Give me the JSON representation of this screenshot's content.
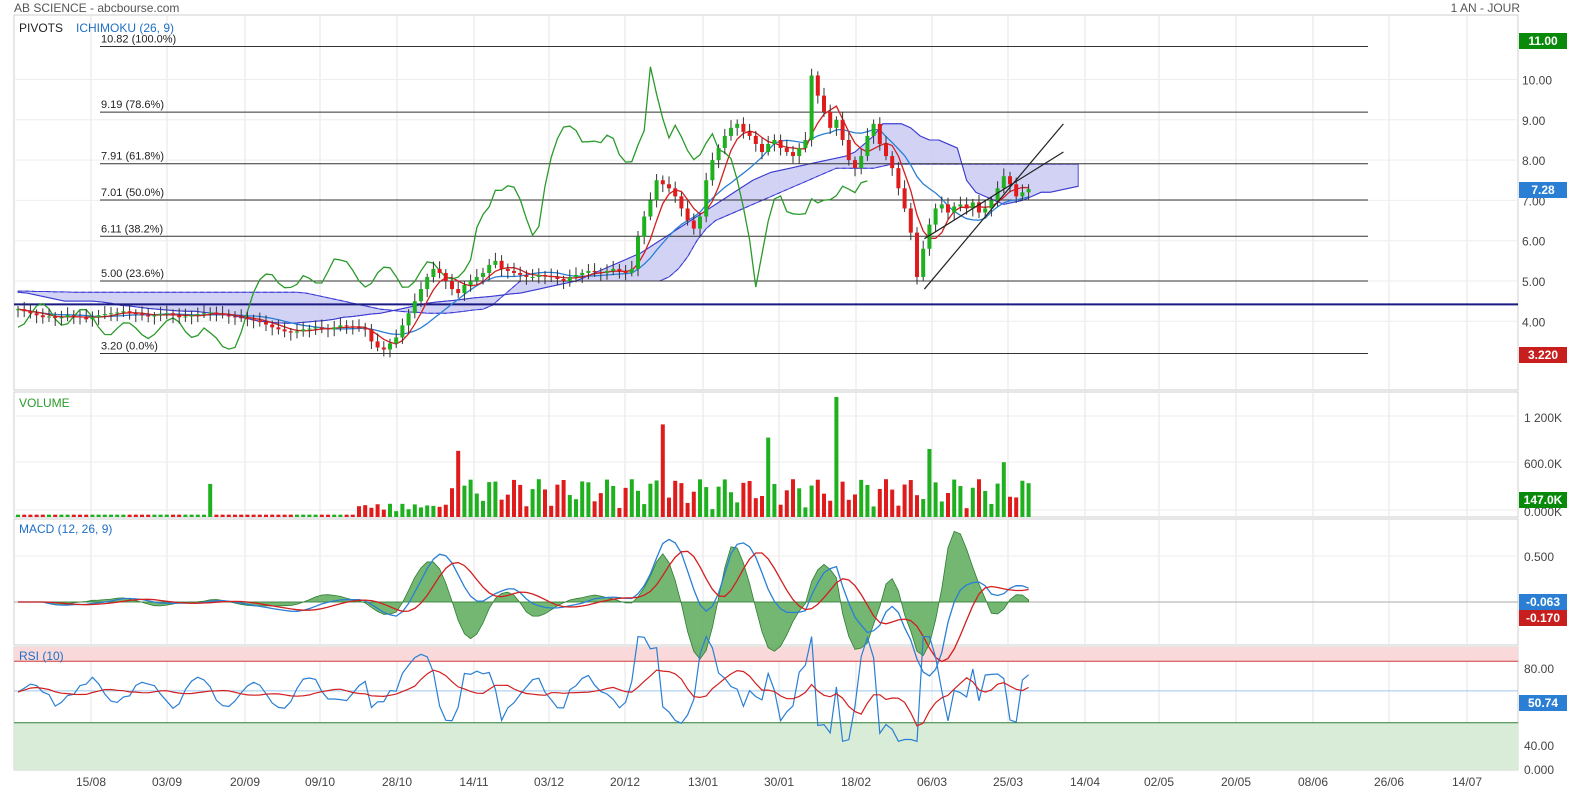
{
  "header": {
    "title": "AB SCIENCE - abcbourse.com",
    "period": "1 AN - JOUR"
  },
  "chart_data": {
    "type": "candlestick-multi-panel",
    "x_ticks": [
      "15/08",
      "03/09",
      "20/09",
      "09/10",
      "28/10",
      "14/11",
      "03/12",
      "20/12",
      "13/01",
      "30/01",
      "18/02",
      "06/03",
      "25/03",
      "14/04",
      "02/05",
      "20/05",
      "08/06",
      "26/06",
      "14/07"
    ],
    "price_panel": {
      "labels": {
        "pivots": "PIVOTS",
        "ichimoku": "ICHIMOKU (26, 9)"
      },
      "y_ticks": [
        "10.00",
        "9.00",
        "8.00",
        "7.00",
        "6.00",
        "5.00",
        "4.00"
      ],
      "fibonacci": [
        {
          "value": 10.82,
          "label": "10.82  (100.0%)"
        },
        {
          "value": 9.19,
          "label": "9.19  (78.6%)"
        },
        {
          "value": 7.91,
          "label": "7.91  (61.8%)"
        },
        {
          "value": 7.01,
          "label": "7.01  (50.0%)"
        },
        {
          "value": 6.11,
          "label": "6.11  (38.2%)"
        },
        {
          "value": 5.0,
          "label": "5.00  (23.6%)"
        },
        {
          "value": 3.2,
          "label": "3.20  (0.0%)"
        }
      ],
      "horizontal_line": 4.42,
      "badges": [
        {
          "label": "11.00",
          "value": 11.0,
          "color": "#0a8a0a"
        },
        {
          "label": "7.28",
          "value": 7.28,
          "color": "#2a7fd4"
        },
        {
          "label": "3.220",
          "value": 3.22,
          "color": "#c81e1e"
        }
      ],
      "closes": [
        4.3,
        4.25,
        4.2,
        4.15,
        4.1,
        4.12,
        4.08,
        4.1,
        4.15,
        4.12,
        4.1,
        4.05,
        4.1,
        4.15,
        4.18,
        4.2,
        4.22,
        4.25,
        4.2,
        4.18,
        4.15,
        4.12,
        4.15,
        4.18,
        4.2,
        4.15,
        4.1,
        4.12,
        4.15,
        4.18,
        4.2,
        4.22,
        4.18,
        4.15,
        4.12,
        4.1,
        4.08,
        4.05,
        4.02,
        3.98,
        3.92,
        3.85,
        3.8,
        3.75,
        3.72,
        3.75,
        3.8,
        3.82,
        3.85,
        3.82,
        3.8,
        3.85,
        3.9,
        3.88,
        3.85,
        3.82,
        3.8,
        3.5,
        3.35,
        3.3,
        3.45,
        3.6,
        3.9,
        4.2,
        4.5,
        4.8,
        5.1,
        5.3,
        5.2,
        5.0,
        4.8,
        4.7,
        4.9,
        5.0,
        5.1,
        5.2,
        5.4,
        5.5,
        5.3,
        5.25,
        5.2,
        5.15,
        5.1,
        5.1,
        5.15,
        5.12,
        5.1,
        5.05,
        5.0,
        5.1,
        5.15,
        5.2,
        5.25,
        5.22,
        5.2,
        5.25,
        5.3,
        5.25,
        5.2,
        5.3,
        6.1,
        6.6,
        7.0,
        7.5,
        7.4,
        7.3,
        7.1,
        6.8,
        6.5,
        6.3,
        6.6,
        7.5,
        8.0,
        8.3,
        8.6,
        8.8,
        8.9,
        8.7,
        8.6,
        8.4,
        8.2,
        8.4,
        8.5,
        8.3,
        8.2,
        8.1,
        8.3,
        8.5,
        10.1,
        9.6,
        9.2,
        8.8,
        9.0,
        8.5,
        8.0,
        7.8,
        8.1,
        8.6,
        8.9,
        8.4,
        8.1,
        7.8,
        7.3,
        6.8,
        6.2,
        5.1,
        5.8,
        6.4,
        6.8,
        6.9,
        6.7,
        6.85,
        6.9,
        6.8,
        6.95,
        6.7,
        6.8,
        7.0,
        7.3,
        7.6,
        7.4,
        7.1,
        7.2,
        7.28
      ],
      "cloud_a": [
        4.72,
        4.7,
        4.65,
        4.6,
        4.55,
        4.5,
        4.5,
        4.5,
        4.5,
        4.48,
        4.45,
        4.4,
        4.38,
        4.35,
        4.32,
        4.3,
        4.28,
        4.26,
        4.25,
        4.25,
        4.22,
        4.2,
        4.18,
        4.15,
        4.1,
        4.05,
        4.0,
        3.98,
        3.96,
        3.95,
        3.96,
        3.98,
        4.0,
        4.02,
        4.05,
        4.1,
        4.12,
        4.15,
        4.18,
        4.2,
        4.25,
        4.3,
        4.35,
        4.4,
        4.45,
        4.48,
        4.5,
        4.52,
        4.55,
        4.58,
        4.6,
        4.62,
        4.65,
        4.68,
        4.7,
        4.75,
        4.8,
        4.85,
        4.9,
        4.95,
        5.0,
        5.1,
        5.2,
        5.3,
        5.4,
        5.5,
        5.6,
        5.7,
        5.85,
        6.0,
        6.15,
        6.3,
        6.45,
        6.6,
        6.75,
        6.9,
        7.05,
        7.2,
        7.35,
        7.5,
        7.6,
        7.7,
        7.75,
        7.8,
        7.85,
        7.9,
        7.95,
        8.0,
        8.05,
        8.1,
        8.2,
        8.4,
        8.6,
        8.9,
        8.9,
        8.9,
        8.8,
        8.6,
        8.5,
        8.5,
        8.4,
        8.3,
        7.5,
        7.2,
        7.1,
        7.0,
        6.9,
        6.95,
        7.0,
        7.1,
        7.2,
        7.2,
        7.25,
        7.3,
        7.35
      ],
      "cloud_b": [
        4.75,
        4.75,
        4.74,
        4.74,
        4.73,
        4.73,
        4.72,
        4.72,
        4.72,
        4.72,
        4.72,
        4.72,
        4.72,
        4.72,
        4.72,
        4.72,
        4.72,
        4.72,
        4.72,
        4.72,
        4.72,
        4.72,
        4.72,
        4.72,
        4.72,
        4.72,
        4.72,
        4.72,
        4.72,
        4.72,
        4.72,
        4.7,
        4.65,
        4.6,
        4.55,
        4.5,
        4.45,
        4.4,
        4.35,
        4.3,
        4.28,
        4.25,
        4.23,
        4.22,
        4.2,
        4.2,
        4.2,
        4.22,
        4.25,
        4.28,
        4.3,
        4.4,
        4.6,
        4.8,
        5.0,
        5.0,
        5.0,
        5.0,
        5.0,
        5.0,
        5.0,
        5.0,
        5.0,
        5.0,
        5.0,
        5.0,
        5.0,
        5.0,
        5.0,
        5.0,
        5.1,
        5.3,
        5.6,
        6.0,
        6.3,
        6.5,
        6.6,
        6.7,
        6.8,
        6.9,
        7.0,
        7.1,
        7.2,
        7.3,
        7.4,
        7.5,
        7.6,
        7.7,
        7.8,
        7.8,
        7.8,
        7.8,
        7.8,
        7.85,
        7.9,
        7.9,
        7.9,
        7.9,
        7.9,
        7.9,
        7.9,
        7.9,
        7.9,
        7.9,
        7.9,
        7.9,
        7.9,
        7.9,
        7.9,
        7.9,
        7.9,
        7.9,
        7.9,
        7.9,
        7.9
      ],
      "channel_lines": [
        {
          "from_index": 147,
          "from_value": 4.8,
          "to_index": 167,
          "to_value": 8.9
        },
        {
          "from_index": 147,
          "from_value": 6.05,
          "to_index": 167,
          "to_value": 8.2
        }
      ]
    },
    "volume_panel": {
      "label": "VOLUME",
      "y_ticks": [
        "1 200K",
        "600.0K",
        "0.000K"
      ],
      "badge": {
        "label": "147.0K",
        "color": "#0a8a0a"
      },
      "spikes": [
        {
          "index": 31,
          "value": 350
        },
        {
          "index": 71,
          "value": 700
        },
        {
          "index": 104,
          "value": 980
        },
        {
          "index": 121,
          "value": 840
        },
        {
          "index": 132,
          "value": 1270
        },
        {
          "index": 147,
          "value": 720
        },
        {
          "index": 159,
          "value": 580
        }
      ]
    },
    "macd_panel": {
      "label": "MACD (12, 26, 9)",
      "y_ticks": [
        "0.500"
      ],
      "badges": [
        {
          "label": "-0.063",
          "color": "#2a7fd4"
        },
        {
          "label": "-0.170",
          "color": "#c81e1e"
        }
      ]
    },
    "rsi_panel": {
      "label": "RSI (10)",
      "y_ticks": [
        "80.00",
        "40.00",
        "0.000"
      ],
      "badge": {
        "label": "50.74",
        "color": "#2a7fd4"
      },
      "overbought": 70,
      "oversold": 30
    }
  }
}
